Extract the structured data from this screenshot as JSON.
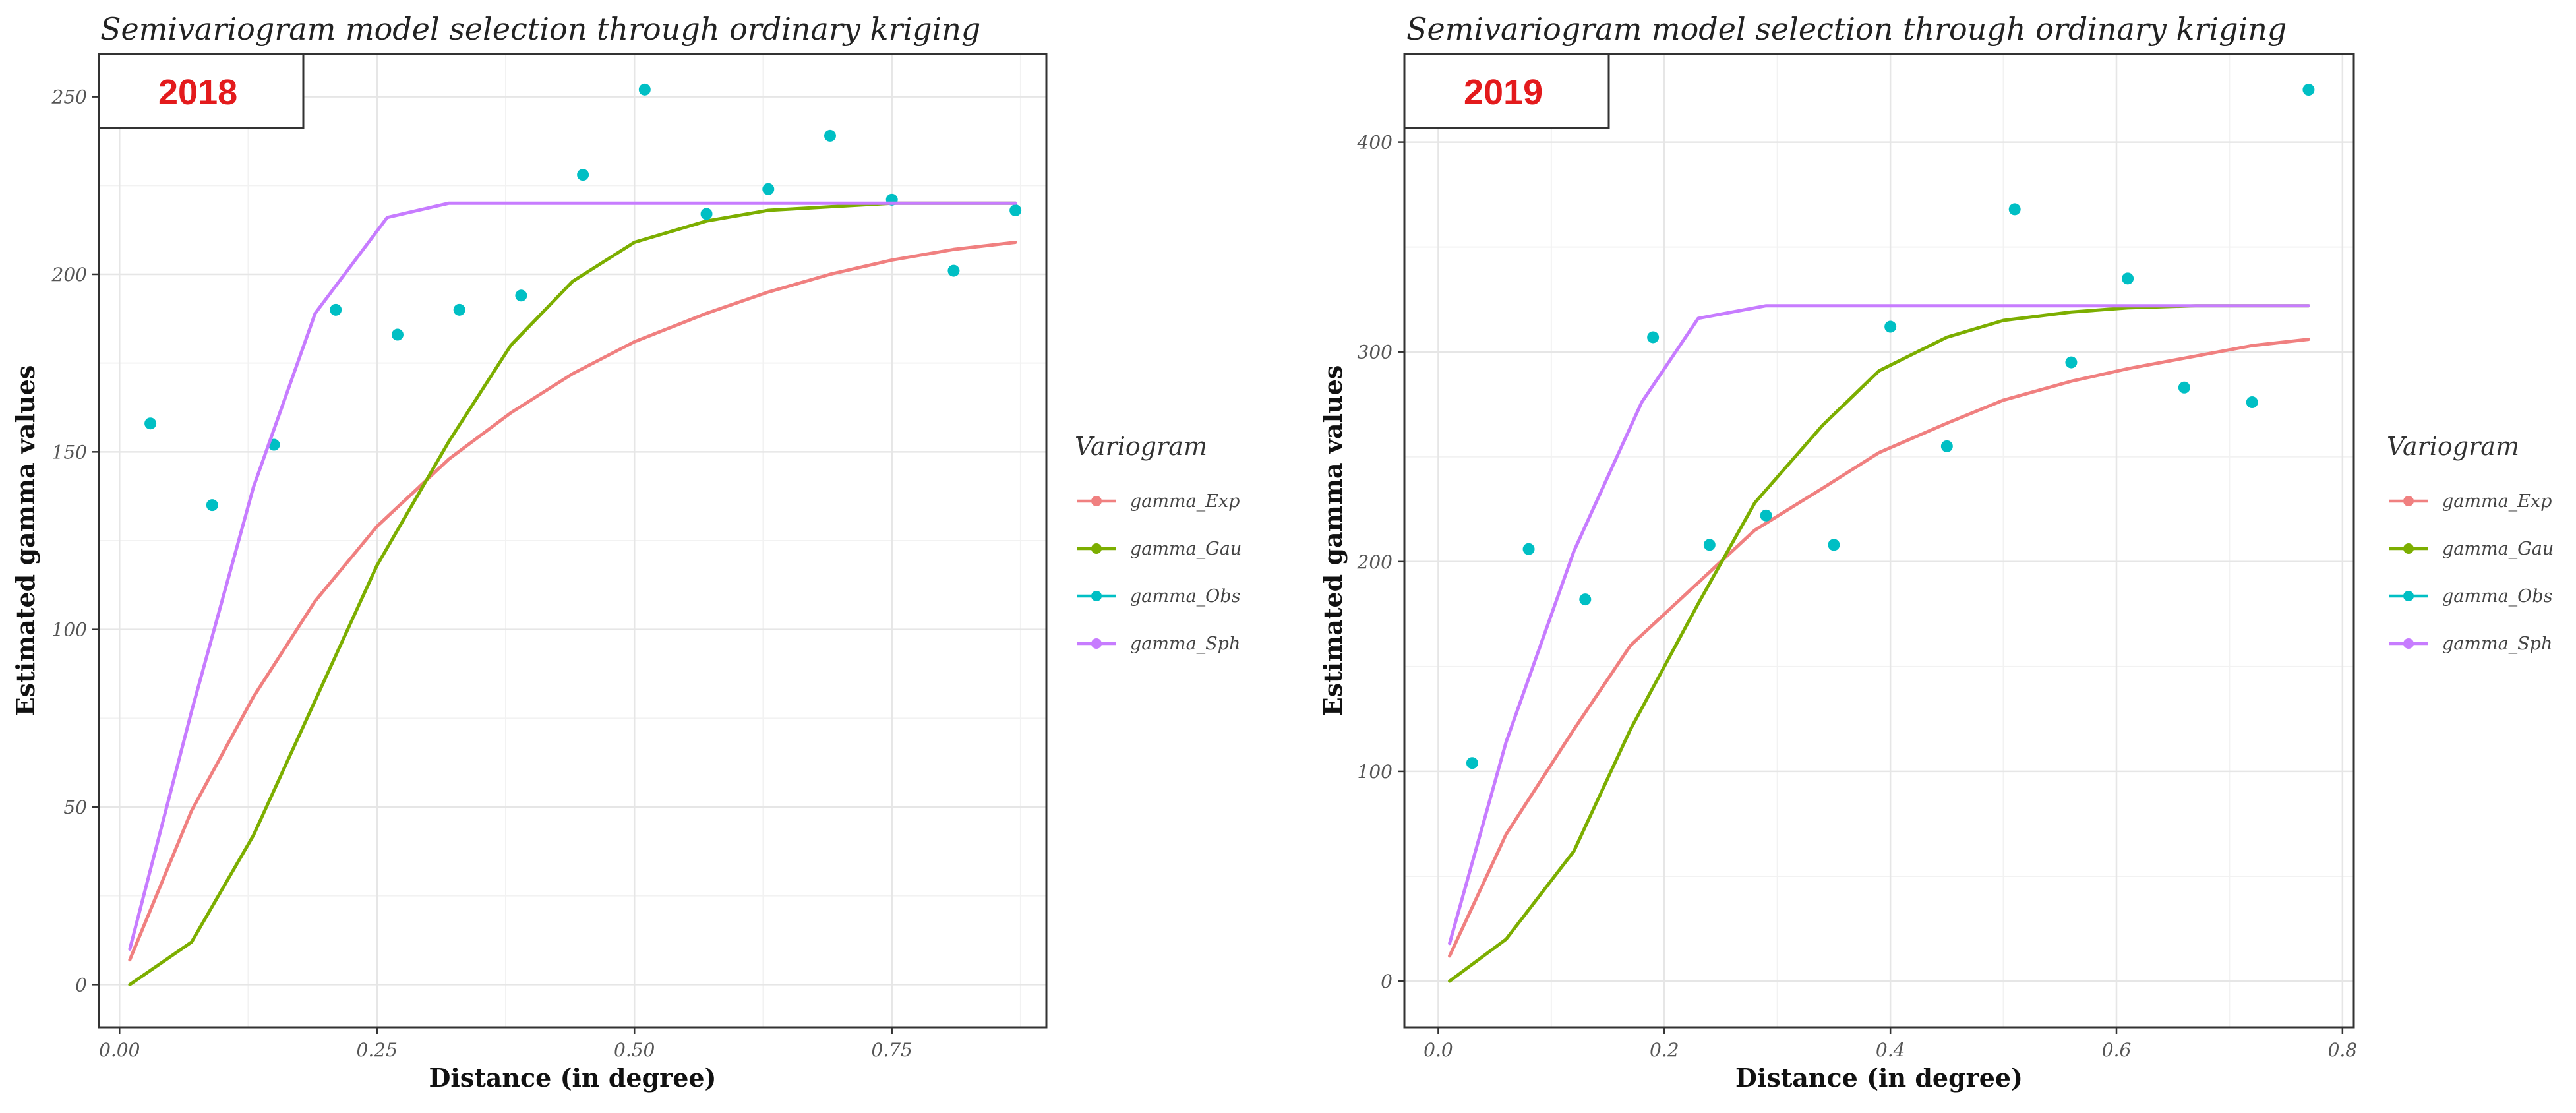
{
  "chart_data": [
    {
      "type": "line",
      "title": "Semivariogram model selection through ordinary kriging",
      "year_label": "2018",
      "xlabel": "Distance (in degree)",
      "ylabel": "Estimated gamma values",
      "xlim": [
        -0.02,
        0.9
      ],
      "ylim": [
        -12,
        262
      ],
      "x_ticks": [
        0.0,
        0.25,
        0.5,
        0.75
      ],
      "x_tick_labels": [
        "0.00",
        "0.25",
        "0.50",
        "0.75"
      ],
      "y_ticks": [
        0,
        50,
        100,
        150,
        200,
        250
      ],
      "y_tick_labels": [
        "0",
        "50",
        "100",
        "150",
        "200",
        "250"
      ],
      "legend_title": "Variogram",
      "series": [
        {
          "name": "gamma_Exp",
          "color": "#F08080",
          "kind": "line",
          "x": [
            0.01,
            0.07,
            0.13,
            0.19,
            0.25,
            0.32,
            0.38,
            0.44,
            0.5,
            0.57,
            0.63,
            0.69,
            0.75,
            0.81,
            0.87
          ],
          "y": [
            7,
            49,
            81,
            108,
            129,
            148,
            161,
            172,
            181,
            189,
            195,
            200,
            204,
            207,
            209
          ]
        },
        {
          "name": "gamma_Gau",
          "color": "#7CAE00",
          "kind": "line",
          "x": [
            0.01,
            0.07,
            0.13,
            0.19,
            0.25,
            0.32,
            0.38,
            0.44,
            0.5,
            0.57,
            0.63,
            0.69,
            0.75,
            0.81,
            0.87
          ],
          "y": [
            0,
            12,
            42,
            80,
            118,
            153,
            180,
            198,
            209,
            215,
            218,
            219,
            220,
            220,
            220
          ]
        },
        {
          "name": "gamma_Obs",
          "color": "#00BFC4",
          "kind": "points",
          "x": [
            0.03,
            0.09,
            0.15,
            0.21,
            0.27,
            0.33,
            0.39,
            0.45,
            0.51,
            0.57,
            0.63,
            0.69,
            0.75,
            0.81,
            0.87
          ],
          "y": [
            158,
            135,
            152,
            190,
            183,
            190,
            194,
            228,
            252,
            217,
            224,
            239,
            221,
            201,
            218
          ]
        },
        {
          "name": "gamma_Sph",
          "color": "#C77CFF",
          "kind": "line",
          "x": [
            0.01,
            0.07,
            0.13,
            0.19,
            0.26,
            0.32,
            0.38,
            0.44,
            0.5,
            0.57,
            0.63,
            0.69,
            0.75,
            0.81,
            0.87
          ],
          "y": [
            10,
            77,
            140,
            189,
            216,
            220,
            220,
            220,
            220,
            220,
            220,
            220,
            220,
            220,
            220
          ]
        }
      ]
    },
    {
      "type": "line",
      "title": "Semivariogram model selection through ordinary kriging",
      "year_label": "2019",
      "xlabel": "Distance (in degree)",
      "ylabel": "Estimated gamma values",
      "xlim": [
        -0.03,
        0.81
      ],
      "ylim": [
        -22,
        442
      ],
      "x_ticks": [
        0.0,
        0.2,
        0.4,
        0.6,
        0.8
      ],
      "x_tick_labels": [
        "0.0",
        "0.2",
        "0.4",
        "0.6",
        "0.8"
      ],
      "y_ticks": [
        0,
        100,
        200,
        300,
        400
      ],
      "y_tick_labels": [
        "0",
        "100",
        "200",
        "300",
        "400"
      ],
      "legend_title": "Variogram",
      "series": [
        {
          "name": "gamma_Exp",
          "color": "#F08080",
          "kind": "line",
          "x": [
            0.01,
            0.06,
            0.12,
            0.17,
            0.23,
            0.28,
            0.34,
            0.39,
            0.45,
            0.5,
            0.56,
            0.61,
            0.67,
            0.72,
            0.77
          ],
          "y": [
            12,
            70,
            120,
            160,
            190,
            215,
            235,
            252,
            266,
            277,
            286,
            292,
            298,
            303,
            306
          ]
        },
        {
          "name": "gamma_Gau",
          "color": "#7CAE00",
          "kind": "line",
          "x": [
            0.01,
            0.06,
            0.12,
            0.17,
            0.23,
            0.28,
            0.34,
            0.39,
            0.45,
            0.5,
            0.56,
            0.61,
            0.67,
            0.72,
            0.77
          ],
          "y": [
            0,
            20,
            62,
            120,
            180,
            228,
            265,
            291,
            307,
            315,
            319,
            321,
            322,
            322,
            322
          ]
        },
        {
          "name": "gamma_Obs",
          "color": "#00BFC4",
          "kind": "points",
          "x": [
            0.03,
            0.08,
            0.13,
            0.19,
            0.24,
            0.29,
            0.35,
            0.4,
            0.45,
            0.51,
            0.56,
            0.61,
            0.66,
            0.72,
            0.77
          ],
          "y": [
            104,
            206,
            182,
            307,
            208,
            222,
            208,
            312,
            255,
            368,
            295,
            335,
            283,
            276,
            425
          ]
        },
        {
          "name": "gamma_Sph",
          "color": "#C77CFF",
          "kind": "line",
          "x": [
            0.01,
            0.06,
            0.12,
            0.18,
            0.23,
            0.29,
            0.34,
            0.4,
            0.45,
            0.51,
            0.56,
            0.62,
            0.67,
            0.72,
            0.77
          ],
          "y": [
            18,
            114,
            205,
            276,
            316,
            322,
            322,
            322,
            322,
            322,
            322,
            322,
            322,
            322,
            322
          ]
        }
      ]
    }
  ]
}
